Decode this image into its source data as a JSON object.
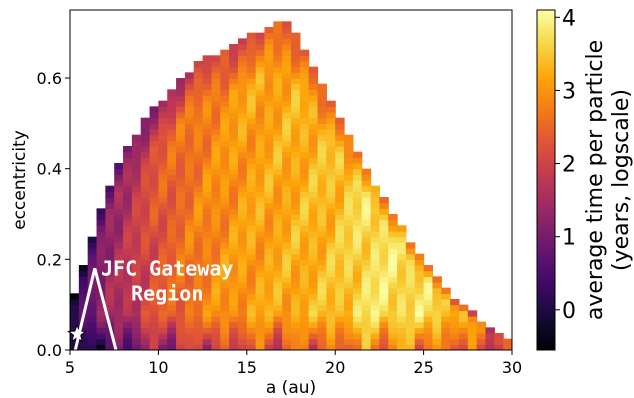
{
  "chart_data": {
    "type": "heatmap",
    "title": "",
    "xlabel": "a (au)",
    "ylabel": "eccentricity",
    "xlim": [
      5,
      30
    ],
    "ylim": [
      0,
      0.75
    ],
    "x_ticks": [
      5,
      10,
      15,
      20,
      25,
      30
    ],
    "y_ticks": [
      0.0,
      0.2,
      0.4,
      0.6
    ],
    "x_tick_labels": [
      "5",
      "10",
      "15",
      "20",
      "25",
      "30"
    ],
    "y_tick_labels": [
      "0.0",
      "0.2",
      "0.4",
      "0.6"
    ],
    "grid": false,
    "colorbar": {
      "label_line1": "average time per particle",
      "label_line2": "(years, logscale)",
      "range": [
        -0.55,
        4.1
      ],
      "ticks": [
        0,
        1,
        2,
        3,
        4
      ],
      "tick_labels": [
        "0",
        "1",
        "2",
        "3",
        "4"
      ],
      "colormap": "inferno"
    },
    "bin_size": {
      "a_au": 0.5,
      "e": 0.0125
    },
    "upper_envelope": [
      [
        5.0,
        0.09
      ],
      [
        5.5,
        0.15
      ],
      [
        6.0,
        0.22
      ],
      [
        6.5,
        0.28
      ],
      [
        7.0,
        0.34
      ],
      [
        8.0,
        0.43
      ],
      [
        9.0,
        0.49
      ],
      [
        10.0,
        0.54
      ],
      [
        11.0,
        0.58
      ],
      [
        12.0,
        0.62
      ],
      [
        13.0,
        0.645
      ],
      [
        14.0,
        0.665
      ],
      [
        15.0,
        0.685
      ],
      [
        16.0,
        0.705
      ],
      [
        17.0,
        0.725
      ],
      [
        17.5,
        0.72
      ],
      [
        18.0,
        0.67
      ],
      [
        19.0,
        0.6
      ],
      [
        20.0,
        0.52
      ],
      [
        21.0,
        0.45
      ],
      [
        22.0,
        0.38
      ],
      [
        23.0,
        0.31
      ],
      [
        24.0,
        0.25
      ],
      [
        25.0,
        0.19
      ],
      [
        26.0,
        0.14
      ],
      [
        27.0,
        0.1
      ],
      [
        28.0,
        0.07
      ],
      [
        29.0,
        0.04
      ],
      [
        30.0,
        0.02
      ]
    ],
    "value_profile": [
      {
        "a": 5,
        "value": 0.3
      },
      {
        "a": 7,
        "value": 1.3
      },
      {
        "a": 10,
        "value": 2.3
      },
      {
        "a": 12.5,
        "value": 2.8
      },
      {
        "a": 15,
        "value": 3.1
      },
      {
        "a": 17,
        "value": 3.2
      },
      {
        "a": 20,
        "value": 3.4
      },
      {
        "a": 22,
        "value": 3.75
      },
      {
        "a": 25,
        "value": 3.7
      },
      {
        "a": 28,
        "value": 3.2
      },
      {
        "a": 30,
        "value": 2.9
      }
    ],
    "annotations": [
      {
        "text_line1": "JFC Gateway",
        "text_line2": "Region",
        "a": 10.5,
        "e": 0.18
      },
      {
        "marker": "star",
        "a": 5.4,
        "e": 0.035
      },
      {
        "shape": "triangle",
        "vertices": [
          [
            5.3,
            0.0
          ],
          [
            6.4,
            0.18
          ],
          [
            7.6,
            0.0
          ]
        ]
      }
    ]
  }
}
